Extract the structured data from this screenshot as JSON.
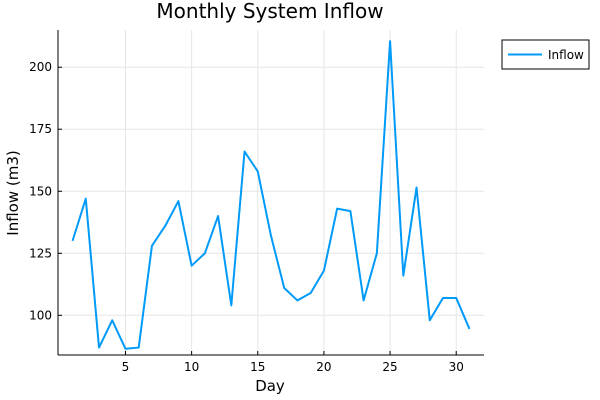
{
  "chart_data": {
    "type": "line",
    "title": "Monthly System Inflow",
    "xlabel": "Day",
    "ylabel": "Inflow (m3)",
    "xlim": [
      -0.1,
      32.1
    ],
    "ylim": [
      84,
      215
    ],
    "xticks": [
      5,
      10,
      15,
      20,
      25,
      30
    ],
    "yticks": [
      100,
      125,
      150,
      175,
      200
    ],
    "grid": true,
    "legend": "top-right",
    "x": [
      1,
      2,
      3,
      4,
      5,
      6,
      7,
      8,
      9,
      10,
      11,
      12,
      13,
      14,
      15,
      16,
      17,
      18,
      19,
      20,
      21,
      22,
      23,
      24,
      25,
      26,
      27,
      28,
      29,
      30,
      31
    ],
    "series": [
      {
        "name": "Inflow",
        "color": "#009af9",
        "values": [
          130,
          147,
          87,
          98,
          86.5,
          87,
          128,
          136,
          146,
          120,
          125,
          140,
          104,
          166,
          158,
          132,
          111,
          106,
          109,
          118,
          143,
          142,
          106,
          125,
          210.5,
          116,
          151.5,
          98,
          107,
          107,
          94.5
        ]
      }
    ]
  }
}
